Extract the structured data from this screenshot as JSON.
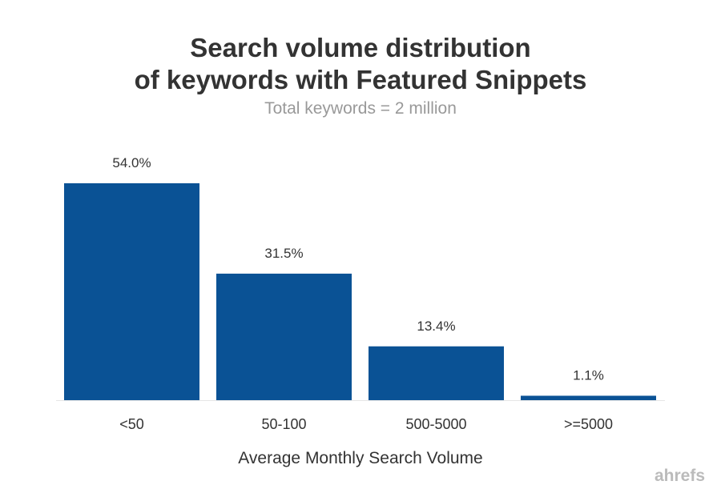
{
  "chart_data": {
    "type": "bar",
    "title_lines": [
      "Search volume distribution",
      "of keywords with Featured Snippets"
    ],
    "subtitle": "Total keywords = 2 million",
    "categories": [
      "<50",
      "50-100",
      "500-5000",
      ">=5000"
    ],
    "values": [
      54.0,
      31.5,
      13.4,
      1.1
    ],
    "data_labels": [
      "54.0%",
      "31.5%",
      "13.4%",
      "1.1%"
    ],
    "xlabel": "Average Monthly Search Volume",
    "ylabel": "",
    "ylim": [
      0,
      60
    ],
    "grid": false,
    "bar_color": "#0a5295"
  },
  "watermark": "ahrefs"
}
